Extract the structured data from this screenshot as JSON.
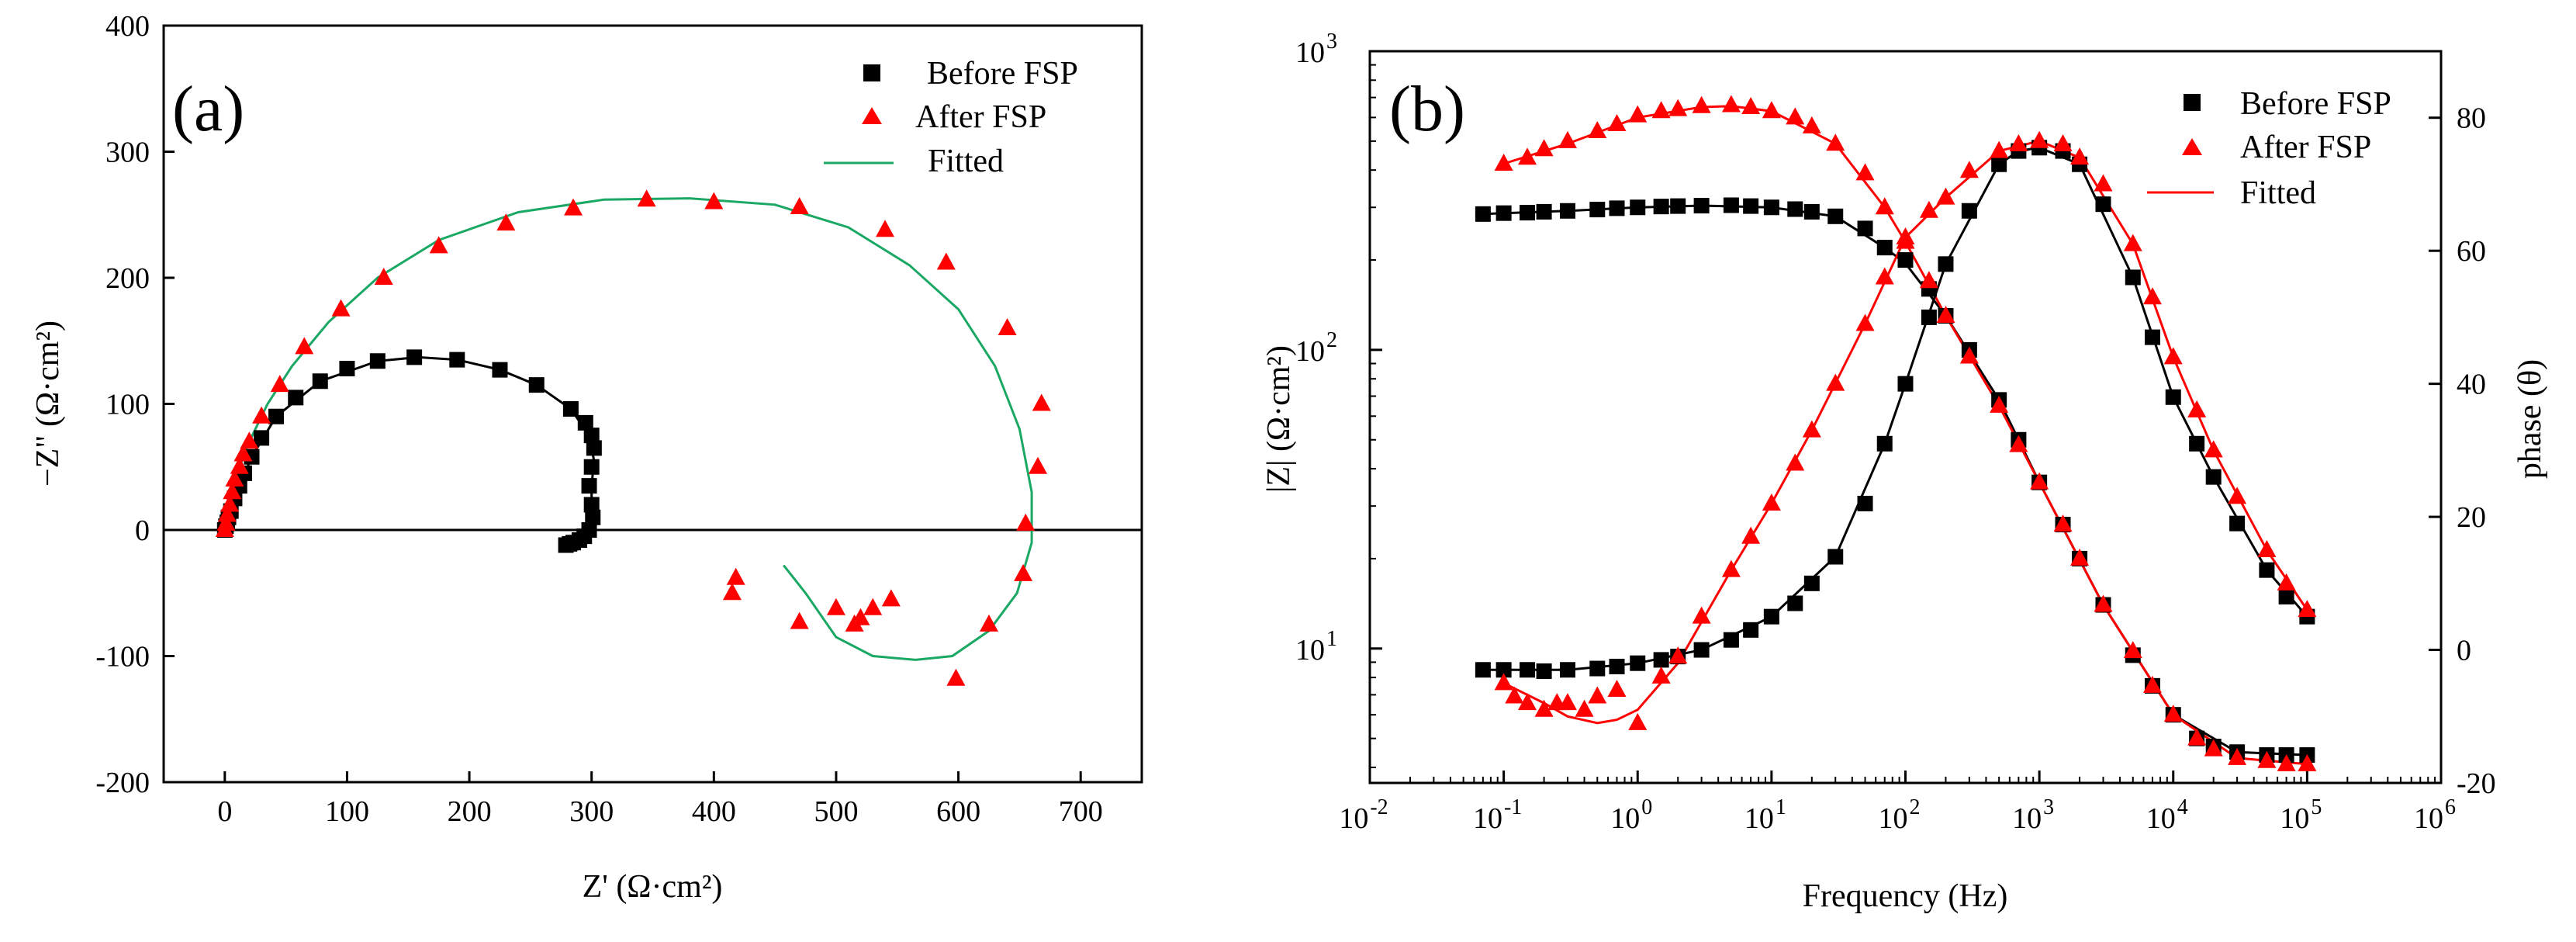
{
  "chart_data": [
    {
      "type": "scatter",
      "panel_label": "(a)",
      "title": "",
      "xlabel": "Z' (Ω·cm²)",
      "ylabel": "−Z\" (Ω·cm²)",
      "xlim": [
        -50,
        750
      ],
      "ylim": [
        -200,
        400
      ],
      "x_ticks": [
        0,
        100,
        200,
        300,
        400,
        500,
        600,
        700
      ],
      "y_ticks": [
        -200,
        -100,
        0,
        100,
        200,
        300,
        400
      ],
      "legend": [
        "Before FSP",
        "After FSP",
        "Fitted"
      ],
      "legend_position": "top-right",
      "colors": {
        "before": "#000000",
        "after": "#ff0000",
        "fitted": "#1aa864"
      },
      "series": [
        {
          "name": "Before FSP",
          "marker": "square",
          "points": [
            [
              0,
              0
            ],
            [
              1,
              3
            ],
            [
              2,
              6
            ],
            [
              3,
              10
            ],
            [
              5,
              15
            ],
            [
              8,
              25
            ],
            [
              12,
              35
            ],
            [
              16,
              45
            ],
            [
              22,
              58
            ],
            [
              30,
              73
            ],
            [
              42,
              90
            ],
            [
              58,
              105
            ],
            [
              78,
              118
            ],
            [
              100,
              128
            ],
            [
              125,
              134
            ],
            [
              155,
              137
            ],
            [
              190,
              135
            ],
            [
              225,
              127
            ],
            [
              255,
              115
            ],
            [
              283,
              96
            ],
            [
              295,
              85
            ],
            [
              300,
              75
            ],
            [
              302,
              65
            ],
            [
              300,
              50
            ],
            [
              298,
              35
            ],
            [
              300,
              20
            ],
            [
              301,
              10
            ],
            [
              298,
              0
            ],
            [
              294,
              -5
            ],
            [
              290,
              -8
            ],
            [
              285,
              -10
            ],
            [
              282,
              -11
            ],
            [
              279,
              -12
            ]
          ]
        },
        {
          "name": "After FSP",
          "marker": "triangle",
          "points": [
            [
              0,
              0
            ],
            [
              1,
              5
            ],
            [
              2,
              12
            ],
            [
              4,
              20
            ],
            [
              6,
              30
            ],
            [
              8,
              40
            ],
            [
              12,
              50
            ],
            [
              15,
              60
            ],
            [
              20,
              70
            ],
            [
              30,
              90
            ],
            [
              45,
              115
            ],
            [
              65,
              145
            ],
            [
              95,
              175
            ],
            [
              130,
              200
            ],
            [
              175,
              225
            ],
            [
              230,
              243
            ],
            [
              285,
              255
            ],
            [
              345,
              262
            ],
            [
              400,
              260
            ],
            [
              470,
              256
            ],
            [
              540,
              238
            ],
            [
              590,
              212
            ],
            [
              640,
              160
            ],
            [
              668,
              100
            ],
            [
              665,
              50
            ],
            [
              655,
              5
            ],
            [
              653,
              -35
            ],
            [
              625,
              -75
            ],
            [
              598,
              -118
            ],
            [
              545,
              -55
            ],
            [
              530,
              -62
            ],
            [
              520,
              -70
            ],
            [
              515,
              -75
            ],
            [
              500,
              -62
            ],
            [
              470,
              -73
            ],
            [
              415,
              -50
            ],
            [
              418,
              -38
            ]
          ]
        },
        {
          "name": "Fitted (Before FSP)",
          "style": "line",
          "color": "black",
          "points": [
            [
              0,
              0
            ],
            [
              2,
              6
            ],
            [
              5,
              15
            ],
            [
              12,
              35
            ],
            [
              22,
              58
            ],
            [
              42,
              90
            ],
            [
              78,
              118
            ],
            [
              125,
              134
            ],
            [
              158,
              137
            ],
            [
              190,
              135
            ],
            [
              225,
              127
            ],
            [
              255,
              115
            ],
            [
              283,
              96
            ],
            [
              298,
              75
            ],
            [
              302,
              55
            ],
            [
              300,
              35
            ],
            [
              300,
              15
            ],
            [
              298,
              0
            ],
            [
              290,
              -8
            ],
            [
              279,
              -12
            ]
          ]
        },
        {
          "name": "Fitted",
          "style": "line",
          "color": "green",
          "points": [
            [
              0,
              0
            ],
            [
              2,
              15
            ],
            [
              5,
              30
            ],
            [
              10,
              45
            ],
            [
              20,
              70
            ],
            [
              35,
              100
            ],
            [
              55,
              130
            ],
            [
              85,
              165
            ],
            [
              125,
              200
            ],
            [
              175,
              230
            ],
            [
              240,
              252
            ],
            [
              310,
              262
            ],
            [
              380,
              263
            ],
            [
              450,
              258
            ],
            [
              510,
              240
            ],
            [
              560,
              210
            ],
            [
              600,
              175
            ],
            [
              630,
              130
            ],
            [
              650,
              80
            ],
            [
              660,
              30
            ],
            [
              660,
              -10
            ],
            [
              648,
              -50
            ],
            [
              625,
              -80
            ],
            [
              595,
              -100
            ],
            [
              565,
              -103
            ],
            [
              530,
              -100
            ],
            [
              500,
              -85
            ],
            [
              475,
              -50
            ],
            [
              457,
              -28
            ]
          ]
        }
      ]
    },
    {
      "type": "scatter",
      "panel_label": "(b)",
      "title": "",
      "xlabel": "Frequency (Hz)",
      "ylabel": "|Z| (Ω·cm²)",
      "ylabel_right": "phase (θ)",
      "x_scale": "log",
      "xlim_exp": [
        -2,
        6
      ],
      "y_scale": "log",
      "ylim_exp": [
        0.55,
        3
      ],
      "y2lim": [
        -20,
        90
      ],
      "x_tick_exponents": [
        "-2",
        "-1",
        "0",
        "1",
        "2",
        "3",
        "4",
        "5",
        "6"
      ],
      "y_tick_exponents": [
        "1",
        "2",
        "3"
      ],
      "y2_ticks": [
        -20,
        0,
        20,
        40,
        60,
        80
      ],
      "legend": [
        "Before FSP",
        "After FSP",
        "Fitted"
      ],
      "legend_position": "top-right",
      "colors": {
        "before": "#000000",
        "after": "#ff0000",
        "fitted": "#ff0000"
      },
      "series": [
        {
          "name": "Before FSP |Z|",
          "marker": "square",
          "axis": "left",
          "x": [
            0.07,
            0.1,
            0.15,
            0.2,
            0.3,
            0.5,
            0.7,
            1,
            1.5,
            2,
            3,
            5,
            7,
            10,
            15,
            20,
            30,
            50,
            70,
            100,
            150,
            200,
            300,
            500,
            700,
            1000,
            1500,
            2000,
            3000,
            5000,
            7000,
            10000,
            15000,
            20000,
            30000,
            50000,
            70000,
            100000
          ],
          "values": [
            285,
            287,
            288,
            290,
            292,
            295,
            298,
            300,
            302,
            303,
            304,
            305,
            303,
            300,
            296,
            290,
            280,
            255,
            220,
            200,
            160,
            130,
            100,
            68,
            50,
            36,
            26,
            20,
            14,
            9.5,
            7.5,
            6,
            5,
            4.7,
            4.5,
            4.4,
            4.4,
            4.4
          ]
        },
        {
          "name": "After FSP |Z|",
          "marker": "triangle",
          "axis": "left",
          "x": [
            0.1,
            0.15,
            0.2,
            0.3,
            0.5,
            0.7,
            1,
            1.5,
            2,
            3,
            5,
            7,
            10,
            15,
            20,
            30,
            50,
            70,
            100,
            150,
            200,
            300,
            500,
            700,
            1000,
            1500,
            2000,
            3000,
            5000,
            7000,
            10000,
            15000,
            20000,
            30000,
            50000,
            70000,
            100000
          ],
          "values": [
            420,
            440,
            470,
            500,
            540,
            570,
            610,
            630,
            640,
            655,
            660,
            650,
            630,
            600,
            560,
            490,
            390,
            300,
            230,
            170,
            130,
            95,
            65,
            48,
            36,
            26,
            20,
            14,
            9.8,
            7.5,
            6,
            5,
            4.6,
            4.3,
            4.2,
            4.1,
            4.1
          ]
        },
        {
          "name": "Before FSP phase",
          "marker": "square",
          "axis": "right",
          "x": [
            0.07,
            0.1,
            0.15,
            0.2,
            0.3,
            0.5,
            0.7,
            1,
            1.5,
            2,
            3,
            5,
            7,
            10,
            15,
            20,
            30,
            50,
            70,
            100,
            150,
            200,
            300,
            500,
            700,
            1000,
            1500,
            2000,
            3000,
            5000,
            7000,
            10000,
            15000,
            20000,
            30000,
            50000,
            70000,
            100000
          ],
          "values": [
            -3,
            -3,
            -3,
            -3.2,
            -3,
            -2.8,
            -2.5,
            -2,
            -1.5,
            -1,
            0,
            1.5,
            3,
            5,
            7,
            10,
            14,
            22,
            31,
            40,
            50,
            58,
            66,
            73,
            75,
            75.5,
            75,
            73,
            67,
            56,
            47,
            38,
            31,
            26,
            19,
            12,
            8,
            5
          ]
        },
        {
          "name": "After FSP phase",
          "marker": "triangle",
          "axis": "right",
          "x": [
            0.1,
            0.12,
            0.15,
            0.2,
            0.25,
            0.3,
            0.4,
            0.5,
            0.7,
            1,
            1.5,
            2,
            3,
            5,
            7,
            10,
            15,
            20,
            30,
            50,
            70,
            100,
            150,
            200,
            300,
            500,
            700,
            1000,
            1500,
            2000,
            3000,
            5000,
            7000,
            10000,
            15000,
            20000,
            30000,
            50000,
            70000,
            100000
          ],
          "values": [
            -5,
            -7,
            -8,
            -9,
            -8,
            -8,
            -9,
            -7,
            -6,
            -11,
            -4,
            -1,
            5,
            12,
            17,
            22,
            28,
            33,
            40,
            49,
            56,
            62,
            66,
            68,
            72,
            75,
            76,
            76.5,
            76,
            74,
            70,
            61,
            53,
            44,
            36,
            30,
            23,
            15,
            10,
            6
          ]
        },
        {
          "name": "Fitted |Z| (Before)",
          "style": "line",
          "color": "black",
          "axis": "left",
          "x": [
            0.07,
            0.3,
            1,
            3,
            10,
            30,
            70,
            100,
            200,
            500,
            1000,
            3000,
            10000,
            30000,
            100000
          ],
          "values": [
            285,
            292,
            300,
            304,
            300,
            280,
            220,
            195,
            130,
            68,
            36,
            14,
            6,
            4.5,
            4.4
          ]
        },
        {
          "name": "Fitted |Z| (After)",
          "style": "line",
          "color": "red",
          "axis": "left",
          "x": [
            0.1,
            0.3,
            1,
            3,
            5,
            10,
            30,
            70,
            100,
            200,
            500,
            1000,
            3000,
            10000,
            30000,
            100000
          ],
          "values": [
            420,
            490,
            600,
            650,
            655,
            630,
            490,
            300,
            230,
            130,
            65,
            36,
            14,
            6,
            4.3,
            4.1
          ]
        },
        {
          "name": "Fitted phase (Before)",
          "style": "line",
          "color": "black",
          "axis": "right",
          "x": [
            0.07,
            0.3,
            1,
            3,
            10,
            30,
            70,
            100,
            200,
            500,
            700,
            1000,
            2000,
            5000,
            10000,
            20000,
            50000,
            100000
          ],
          "values": [
            -3,
            -3,
            -2,
            0,
            5,
            14,
            31,
            40,
            58,
            73,
            75,
            75.5,
            73,
            56,
            38,
            26,
            12,
            5
          ]
        },
        {
          "name": "Fitted",
          "style": "line",
          "color": "red",
          "axis": "right",
          "x": [
            0.1,
            0.2,
            0.3,
            0.5,
            0.7,
            1,
            2,
            5,
            10,
            20,
            50,
            100,
            200,
            500,
            1000,
            2000,
            5000,
            10000,
            20000,
            50000,
            100000
          ],
          "values": [
            -5,
            -8,
            -10,
            -11,
            -10.5,
            -9,
            -2,
            12,
            22,
            33,
            49,
            62,
            68,
            75,
            76.5,
            74,
            61,
            44,
            30,
            15,
            6
          ]
        }
      ]
    }
  ]
}
